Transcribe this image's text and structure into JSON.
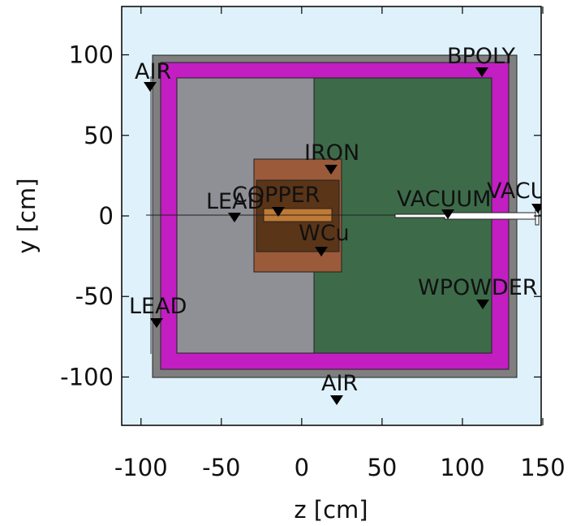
{
  "axes": {
    "x_title": "z [cm]",
    "y_title": "y [cm]",
    "x_ticks": [
      {
        "value": -100,
        "label": "-100"
      },
      {
        "value": -50,
        "label": "-50"
      },
      {
        "value": 0,
        "label": "0"
      },
      {
        "value": 50,
        "label": "50"
      },
      {
        "value": 100,
        "label": "100"
      },
      {
        "value": 150,
        "label": "150"
      }
    ],
    "y_ticks": [
      {
        "value": 100,
        "label": "100"
      },
      {
        "value": 50,
        "label": "50"
      },
      {
        "value": 0,
        "label": "0"
      },
      {
        "value": -50,
        "label": "-50"
      },
      {
        "value": -100,
        "label": "-100"
      }
    ],
    "x_range": [
      -112,
      149
    ],
    "y_range": [
      -130,
      130
    ]
  },
  "colors": {
    "air": "#dff1fb",
    "outer_lead": "#7f7f7f",
    "bpoly": "#c21ec2",
    "lead": "#8f8f96",
    "wpowder": "#3d6b4a",
    "iron": "#9b5a3a",
    "copper": "#5a3518",
    "wcu": "#c07a35",
    "vacuum": "#ffffff",
    "line": "#222222"
  },
  "labels": {
    "air_top": "AIR",
    "bpoly": "BPOLY",
    "iron": "IRON",
    "lead_mid": "LEAD",
    "copper": "COPPER",
    "vacuum_in": "VACUUM",
    "vacuum_out": "VACUUM",
    "wcu": "WCu",
    "wpowder": "WPOWDER",
    "lead_left": "LEAD",
    "air_bottom": "AIR"
  }
}
